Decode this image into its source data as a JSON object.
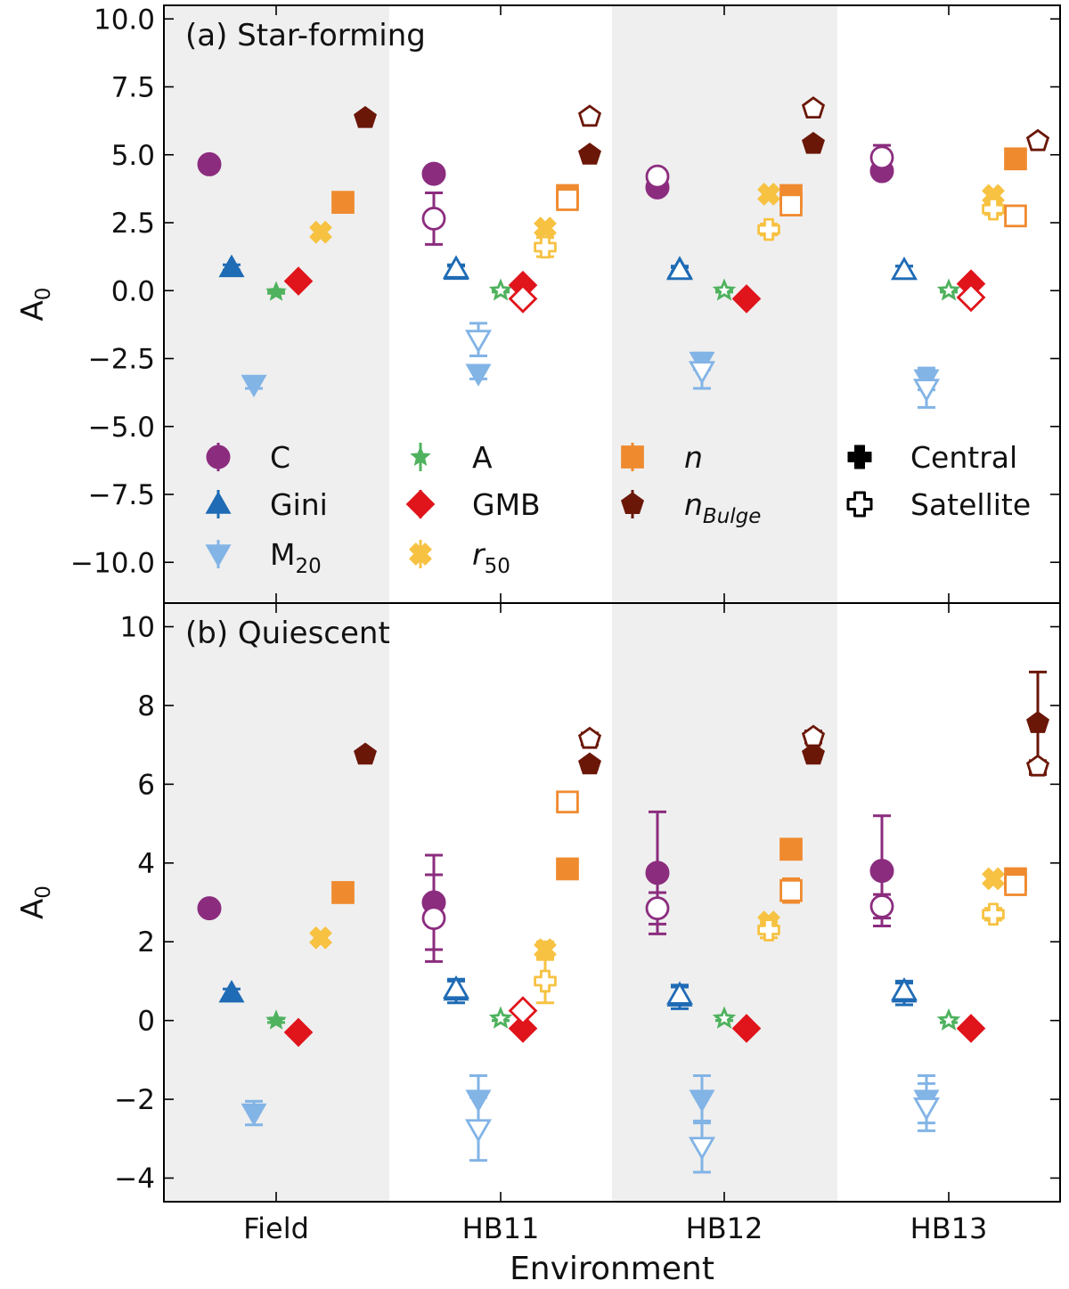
{
  "chart_data": {
    "type": "scatter",
    "xlabel": "Environment",
    "categories": [
      "Field",
      "HB11",
      "HB12",
      "HB13"
    ],
    "colors": {
      "C": "#8b2c7e",
      "Gini": "#1f6bb5",
      "M20": "#82b4e6",
      "A": "#4fb25e",
      "GMB": "#e0141b",
      "r50": "#f7c242",
      "n": "#ef8a2f",
      "nBulge": "#6b1708",
      "shade": "#efefef"
    },
    "metrics": [
      {
        "key": "C",
        "label": "C",
        "marker": "circle"
      },
      {
        "key": "Gini",
        "label": "Gini",
        "marker": "triangle-up"
      },
      {
        "key": "M20",
        "label": "M",
        "sub": "20",
        "marker": "triangle-down"
      },
      {
        "key": "A",
        "label": "A",
        "marker": "star"
      },
      {
        "key": "GMB",
        "label": "GMB",
        "marker": "diamond"
      },
      {
        "key": "r50",
        "label": "r",
        "sub": "50",
        "italic": true,
        "marker": "cross"
      },
      {
        "key": "n",
        "label": "n",
        "italic": true,
        "marker": "square"
      },
      {
        "key": "nBulge",
        "label": "n",
        "sub": "Bulge",
        "italic": true,
        "subItalic": true,
        "marker": "pentagon"
      }
    ],
    "legend_types": [
      {
        "label": "Central",
        "filled": true
      },
      {
        "label": "Satellite",
        "filled": false
      }
    ],
    "panels": [
      {
        "title": "(a) Star-forming",
        "ylabel": "A",
        "ylabel_sub": "0",
        "ylim": [
          -11.5,
          10.5
        ],
        "yticks": [
          -10.0,
          -7.5,
          -5.0,
          -2.5,
          0.0,
          2.5,
          5.0,
          7.5,
          10.0
        ],
        "ytick_labels": [
          "−10.0",
          "−7.5",
          "−5.0",
          "−2.5",
          "0.0",
          "2.5",
          "5.0",
          "7.5",
          "10.0"
        ],
        "points": [
          {
            "env": 0,
            "metric": "C",
            "type": "central",
            "y": 4.65,
            "err": 0.15
          },
          {
            "env": 0,
            "metric": "Gini",
            "type": "central",
            "y": 0.85,
            "err": 0.1
          },
          {
            "env": 0,
            "metric": "M20",
            "type": "central",
            "y": -3.45,
            "err": 0.15
          },
          {
            "env": 0,
            "metric": "A",
            "type": "central",
            "y": -0.05,
            "err": 0.05
          },
          {
            "env": 0,
            "metric": "GMB",
            "type": "central",
            "y": 0.35,
            "err": 0.05
          },
          {
            "env": 0,
            "metric": "r50",
            "type": "central",
            "y": 2.15,
            "err": 0.1
          },
          {
            "env": 0,
            "metric": "n",
            "type": "central",
            "y": 3.25,
            "err": 0.1
          },
          {
            "env": 0,
            "metric": "nBulge",
            "type": "central",
            "y": 6.35,
            "err": 0.1
          },
          {
            "env": 1,
            "metric": "C",
            "type": "central",
            "y": 4.3,
            "err": 0.15
          },
          {
            "env": 1,
            "metric": "C",
            "type": "satellite",
            "y": 2.65,
            "err": 0.95
          },
          {
            "env": 1,
            "metric": "Gini",
            "type": "central",
            "y": 0.75,
            "err": 0.15
          },
          {
            "env": 1,
            "metric": "Gini",
            "type": "satellite",
            "y": 0.8,
            "err": 0.15
          },
          {
            "env": 1,
            "metric": "M20",
            "type": "central",
            "y": -3.05,
            "err": 0.2
          },
          {
            "env": 1,
            "metric": "M20",
            "type": "satellite",
            "y": -1.8,
            "err": 0.6
          },
          {
            "env": 1,
            "metric": "A",
            "type": "central",
            "y": 0.0,
            "err": 0.05
          },
          {
            "env": 1,
            "metric": "A",
            "type": "satellite",
            "y": 0.0,
            "err": 0.05
          },
          {
            "env": 1,
            "metric": "GMB",
            "type": "central",
            "y": 0.2,
            "err": 0.05
          },
          {
            "env": 1,
            "metric": "GMB",
            "type": "satellite",
            "y": -0.3,
            "err": 0.1
          },
          {
            "env": 1,
            "metric": "r50",
            "type": "central",
            "y": 2.3,
            "err": 0.2
          },
          {
            "env": 1,
            "metric": "r50",
            "type": "satellite",
            "y": 1.6,
            "err": 0.35
          },
          {
            "env": 1,
            "metric": "n",
            "type": "central",
            "y": 3.5,
            "err": 0.15
          },
          {
            "env": 1,
            "metric": "n",
            "type": "satellite",
            "y": 3.35,
            "err": 0.2
          },
          {
            "env": 1,
            "metric": "nBulge",
            "type": "central",
            "y": 5.0,
            "err": 0.1
          },
          {
            "env": 1,
            "metric": "nBulge",
            "type": "satellite",
            "y": 6.4,
            "err": 0.15
          },
          {
            "env": 2,
            "metric": "C",
            "type": "central",
            "y": 3.8,
            "err": 0.15
          },
          {
            "env": 2,
            "metric": "C",
            "type": "satellite",
            "y": 4.2,
            "err": 0.2
          },
          {
            "env": 2,
            "metric": "Gini",
            "type": "central",
            "y": 0.8,
            "err": 0.1
          },
          {
            "env": 2,
            "metric": "Gini",
            "type": "satellite",
            "y": 0.75,
            "err": 0.1
          },
          {
            "env": 2,
            "metric": "M20",
            "type": "central",
            "y": -2.6,
            "err": 0.3
          },
          {
            "env": 2,
            "metric": "M20",
            "type": "satellite",
            "y": -2.95,
            "err": 0.65
          },
          {
            "env": 2,
            "metric": "A",
            "type": "central",
            "y": 0.0,
            "err": 0.05
          },
          {
            "env": 2,
            "metric": "A",
            "type": "satellite",
            "y": 0.0,
            "err": 0.05
          },
          {
            "env": 2,
            "metric": "GMB",
            "type": "central",
            "y": -0.3,
            "err": 0.05
          },
          {
            "env": 2,
            "metric": "r50",
            "type": "central",
            "y": 3.55,
            "err": 0.15
          },
          {
            "env": 2,
            "metric": "r50",
            "type": "satellite",
            "y": 2.25,
            "err": 0.2
          },
          {
            "env": 2,
            "metric": "n",
            "type": "central",
            "y": 3.5,
            "err": 0.15
          },
          {
            "env": 2,
            "metric": "n",
            "type": "satellite",
            "y": 3.15,
            "err": 0.25
          },
          {
            "env": 2,
            "metric": "nBulge",
            "type": "central",
            "y": 5.4,
            "err": 0.1
          },
          {
            "env": 2,
            "metric": "nBulge",
            "type": "satellite",
            "y": 6.7,
            "err": 0.15
          },
          {
            "env": 3,
            "metric": "C",
            "type": "central",
            "y": 4.4,
            "err": 0.15
          },
          {
            "env": 3,
            "metric": "C",
            "type": "satellite",
            "y": 4.9,
            "err": 0.45
          },
          {
            "env": 3,
            "metric": "Gini",
            "type": "central",
            "y": 0.75,
            "err": 0.15
          },
          {
            "env": 3,
            "metric": "Gini",
            "type": "satellite",
            "y": 0.75,
            "err": 0.15
          },
          {
            "env": 3,
            "metric": "M20",
            "type": "central",
            "y": -3.25,
            "err": 0.4
          },
          {
            "env": 3,
            "metric": "M20",
            "type": "satellite",
            "y": -3.6,
            "err": 0.7
          },
          {
            "env": 3,
            "metric": "A",
            "type": "central",
            "y": 0.0,
            "err": 0.05
          },
          {
            "env": 3,
            "metric": "A",
            "type": "satellite",
            "y": 0.0,
            "err": 0.05
          },
          {
            "env": 3,
            "metric": "GMB",
            "type": "central",
            "y": 0.25,
            "err": 0.05
          },
          {
            "env": 3,
            "metric": "GMB",
            "type": "satellite",
            "y": -0.25,
            "err": 0.1
          },
          {
            "env": 3,
            "metric": "r50",
            "type": "central",
            "y": 3.5,
            "err": 0.15
          },
          {
            "env": 3,
            "metric": "r50",
            "type": "satellite",
            "y": 3.0,
            "err": 0.2
          },
          {
            "env": 3,
            "metric": "n",
            "type": "central",
            "y": 4.85,
            "err": 0.15
          },
          {
            "env": 3,
            "metric": "n",
            "type": "satellite",
            "y": 2.75,
            "err": 0.25
          },
          {
            "env": 3,
            "metric": "nBulge",
            "type": "central",
            "y": 5.5,
            "err": 0.1
          },
          {
            "env": 3,
            "metric": "nBulge",
            "type": "satellite",
            "y": 5.5,
            "err": 0.1
          }
        ]
      },
      {
        "title": "(b) Quiescent",
        "ylabel": "A",
        "ylabel_sub": "0",
        "ylim": [
          -4.6,
          10.6
        ],
        "yticks": [
          -4,
          -2,
          0,
          2,
          4,
          6,
          8,
          10
        ],
        "ytick_labels": [
          "−4",
          "−2",
          "0",
          "2",
          "4",
          "6",
          "8",
          "10"
        ],
        "points": [
          {
            "env": 0,
            "metric": "C",
            "type": "central",
            "y": 2.85,
            "err": 0.1
          },
          {
            "env": 0,
            "metric": "Gini",
            "type": "central",
            "y": 0.7,
            "err": 0.1
          },
          {
            "env": 0,
            "metric": "M20",
            "type": "central",
            "y": -2.35,
            "err": 0.3
          },
          {
            "env": 0,
            "metric": "A",
            "type": "central",
            "y": 0.0,
            "err": 0.05
          },
          {
            "env": 0,
            "metric": "GMB",
            "type": "central",
            "y": -0.3,
            "err": 0.05
          },
          {
            "env": 0,
            "metric": "r50",
            "type": "central",
            "y": 2.1,
            "err": 0.1
          },
          {
            "env": 0,
            "metric": "n",
            "type": "central",
            "y": 3.25,
            "err": 0.1
          },
          {
            "env": 0,
            "metric": "nBulge",
            "type": "central",
            "y": 6.75,
            "err": 0.1
          },
          {
            "env": 1,
            "metric": "C",
            "type": "central",
            "y": 3.0,
            "err": 1.2
          },
          {
            "env": 1,
            "metric": "C",
            "type": "satellite",
            "y": 2.6,
            "err": 1.1
          },
          {
            "env": 1,
            "metric": "Gini",
            "type": "central",
            "y": 0.75,
            "err": 0.3
          },
          {
            "env": 1,
            "metric": "Gini",
            "type": "satellite",
            "y": 0.8,
            "err": 0.2
          },
          {
            "env": 1,
            "metric": "M20",
            "type": "central",
            "y": -2.0,
            "err": 0.6
          },
          {
            "env": 1,
            "metric": "M20",
            "type": "satellite",
            "y": -2.75,
            "err": 0.8
          },
          {
            "env": 1,
            "metric": "A",
            "type": "central",
            "y": 0.05,
            "err": 0.05
          },
          {
            "env": 1,
            "metric": "A",
            "type": "satellite",
            "y": 0.05,
            "err": 0.05
          },
          {
            "env": 1,
            "metric": "GMB",
            "type": "central",
            "y": -0.2,
            "err": 0.05
          },
          {
            "env": 1,
            "metric": "GMB",
            "type": "satellite",
            "y": 0.25,
            "err": 0.1
          },
          {
            "env": 1,
            "metric": "r50",
            "type": "central",
            "y": 1.8,
            "err": 0.2
          },
          {
            "env": 1,
            "metric": "r50",
            "type": "satellite",
            "y": 1.0,
            "err": 0.55
          },
          {
            "env": 1,
            "metric": "n",
            "type": "central",
            "y": 3.85,
            "err": 0.1
          },
          {
            "env": 1,
            "metric": "n",
            "type": "satellite",
            "y": 5.55,
            "err": 0.2
          },
          {
            "env": 1,
            "metric": "nBulge",
            "type": "central",
            "y": 6.5,
            "err": 0.1
          },
          {
            "env": 1,
            "metric": "nBulge",
            "type": "satellite",
            "y": 7.15,
            "err": 0.15
          },
          {
            "env": 2,
            "metric": "C",
            "type": "central",
            "y": 3.75,
            "err": 1.55
          },
          {
            "env": 2,
            "metric": "C",
            "type": "satellite",
            "y": 2.85,
            "err": 0.4
          },
          {
            "env": 2,
            "metric": "Gini",
            "type": "central",
            "y": 0.6,
            "err": 0.3
          },
          {
            "env": 2,
            "metric": "Gini",
            "type": "satellite",
            "y": 0.65,
            "err": 0.2
          },
          {
            "env": 2,
            "metric": "M20",
            "type": "central",
            "y": -2.0,
            "err": 0.6
          },
          {
            "env": 2,
            "metric": "M20",
            "type": "satellite",
            "y": -3.2,
            "err": 0.65
          },
          {
            "env": 2,
            "metric": "A",
            "type": "central",
            "y": 0.05,
            "err": 0.05
          },
          {
            "env": 2,
            "metric": "A",
            "type": "satellite",
            "y": 0.05,
            "err": 0.05
          },
          {
            "env": 2,
            "metric": "GMB",
            "type": "central",
            "y": -0.2,
            "err": 0.05
          },
          {
            "env": 2,
            "metric": "r50",
            "type": "central",
            "y": 2.5,
            "err": 0.15
          },
          {
            "env": 2,
            "metric": "r50",
            "type": "satellite",
            "y": 2.3,
            "err": 0.2
          },
          {
            "env": 2,
            "metric": "n",
            "type": "central",
            "y": 4.35,
            "err": 0.1
          },
          {
            "env": 2,
            "metric": "n",
            "type": "satellite",
            "y": 3.3,
            "err": 0.3
          },
          {
            "env": 2,
            "metric": "nBulge",
            "type": "central",
            "y": 6.75,
            "err": 0.1
          },
          {
            "env": 2,
            "metric": "nBulge",
            "type": "satellite",
            "y": 7.2,
            "err": 0.15
          },
          {
            "env": 3,
            "metric": "C",
            "type": "central",
            "y": 3.8,
            "err": 1.4
          },
          {
            "env": 3,
            "metric": "C",
            "type": "satellite",
            "y": 2.9,
            "err": 0.3
          },
          {
            "env": 3,
            "metric": "Gini",
            "type": "central",
            "y": 0.7,
            "err": 0.3
          },
          {
            "env": 3,
            "metric": "Gini",
            "type": "satellite",
            "y": 0.75,
            "err": 0.2
          },
          {
            "env": 3,
            "metric": "M20",
            "type": "central",
            "y": -2.0,
            "err": 0.6
          },
          {
            "env": 3,
            "metric": "M20",
            "type": "satellite",
            "y": -2.2,
            "err": 0.6
          },
          {
            "env": 3,
            "metric": "A",
            "type": "central",
            "y": 0.0,
            "err": 0.05
          },
          {
            "env": 3,
            "metric": "A",
            "type": "satellite",
            "y": 0.0,
            "err": 0.05
          },
          {
            "env": 3,
            "metric": "GMB",
            "type": "central",
            "y": -0.2,
            "err": 0.05
          },
          {
            "env": 3,
            "metric": "r50",
            "type": "central",
            "y": 3.6,
            "err": 0.1
          },
          {
            "env": 3,
            "metric": "r50",
            "type": "satellite",
            "y": 2.7,
            "err": 0.15
          },
          {
            "env": 3,
            "metric": "n",
            "type": "central",
            "y": 3.6,
            "err": 0.1
          },
          {
            "env": 3,
            "metric": "n",
            "type": "satellite",
            "y": 3.45,
            "err": 0.2
          },
          {
            "env": 3,
            "metric": "nBulge",
            "type": "central",
            "y": 7.55,
            "err": 1.3
          },
          {
            "env": 3,
            "metric": "nBulge",
            "type": "satellite",
            "y": 6.45,
            "err": 0.15
          }
        ]
      }
    ]
  }
}
